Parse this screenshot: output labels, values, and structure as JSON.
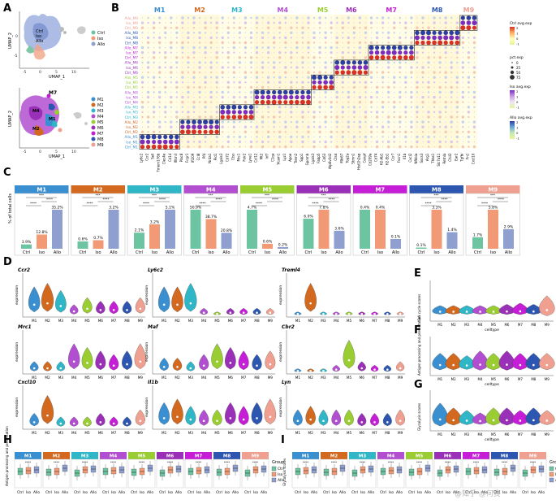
{
  "panels": {
    "A": "A",
    "B": "B",
    "C": "C",
    "D": "D",
    "E": "E",
    "F": "F",
    "G": "G",
    "H": "H",
    "I": "I"
  },
  "clusters": [
    "M1",
    "M2",
    "M3",
    "M4",
    "M5",
    "M6",
    "M7",
    "M8",
    "M9"
  ],
  "groups": [
    "Ctrl",
    "Iso",
    "Allo"
  ],
  "colors": {
    "M1": "#3a8fd1",
    "M2": "#d2691e",
    "M3": "#2fb7c7",
    "M4": "#b24fd0",
    "M5": "#9acd32",
    "M6": "#9b30b8",
    "M7": "#c51ed6",
    "M8": "#2d56b0",
    "M9": "#f0a090",
    "Ctrl": "#6cc4a0",
    "Iso": "#f29a76",
    "Allo": "#8e9fd0"
  },
  "panelA": {
    "xlabel": "UMAP_1",
    "ylabel": "UMAP_2",
    "top_labels": [
      "Ctrl",
      "Iso",
      "Allo"
    ],
    "bottom_cluster_label": "M7",
    "xticks": [
      "-5",
      "0",
      "5",
      "10"
    ],
    "yticks": [
      "0",
      "-5",
      "-10"
    ]
  },
  "panelB": {
    "rows": [
      "Allo_M9",
      "Iso_M9",
      "Ctrl_M9",
      "Allo_M8",
      "Iso_M8",
      "Ctrl_M8",
      "Allo_M7",
      "Iso_M7",
      "Ctrl_M7",
      "Allo_M6",
      "Iso_M6",
      "Ctrl_M6",
      "Allo_M5",
      "Iso_M5",
      "Ctrl_M5",
      "Allo_M4",
      "Iso_M4",
      "Ctrl_M4",
      "Allo_M3",
      "Iso_M3",
      "Ctrl_M3",
      "Allo_M2",
      "Iso_M2",
      "Ctrl_M2",
      "Allo_M1",
      "Iso_M1",
      "Ctrl_M1"
    ],
    "genes": [
      "Ly6c2",
      "Ccr2",
      "Sell",
      "Tmem176b",
      "Clec4e",
      "Cd14",
      "Ifitm3",
      "Plac8",
      "Fcgr1",
      "Ifi209",
      "Ccl8",
      "Pf4",
      "Nr4a1",
      "Pid1",
      "Lgals3",
      "Cd72",
      "Ctss",
      "Mrc1",
      "Folr2",
      "Lyve1",
      "Ccl12",
      "Mt2",
      "Irf7",
      "C1qa",
      "Vcam1",
      "Lyz1",
      "Apoe",
      "Trem2",
      "Spp1",
      "Gpnmb",
      "Lgals3",
      "Fabp5",
      "Cd63",
      "Atp6v0d2",
      "Ctsd",
      "Mki67",
      "Top2a",
      "Stmn1",
      "Hist1h2ap",
      "Cenpf",
      "Cd209a",
      "Cd74",
      "H2-Ab1",
      "H2-Eb1",
      "Ccr7",
      "Fscn1",
      "Il1b",
      "Cxcl2",
      "Nfkbia",
      "Socs3",
      "Arg1",
      "Thbs1",
      "Slc7a11",
      "Retnla",
      "Chil3",
      "Ear2",
      "Tgfbi",
      "Fn1",
      "Cxcl10"
    ],
    "legend_titles": [
      "Ctrl avg.exp",
      "pct.exp",
      "Iso avg.exp",
      "Allo avg.exp"
    ],
    "pct_labels": [
      "0",
      "25",
      "50",
      "75"
    ],
    "scale_labels": [
      "2",
      "1",
      "0",
      "-1"
    ]
  },
  "panelC": {
    "ylabel": "% of total cells",
    "chart_data": [
      {
        "type": "bar",
        "title": "M1",
        "categories": [
          "Ctrl",
          "Iso",
          "Allo"
        ],
        "values": [
          3.9,
          12.8,
          35.2
        ],
        "labels": [
          "3.9%",
          "12.8%",
          "35.2%"
        ]
      },
      {
        "type": "bar",
        "title": "M2",
        "categories": [
          "Ctrl",
          "Iso",
          "Allo"
        ],
        "values": [
          0.6,
          0.7,
          3.2
        ],
        "labels": [
          "0.6%",
          "0.7%",
          "3.2%"
        ]
      },
      {
        "type": "bar",
        "title": "M3",
        "categories": [
          "Ctrl",
          "Iso",
          "Allo"
        ],
        "values": [
          2.1,
          3.2,
          5.1
        ],
        "labels": [
          "2.1%",
          "3.2%",
          "5.1%"
        ]
      },
      {
        "type": "bar",
        "title": "M4",
        "categories": [
          "Ctrl",
          "Iso",
          "Allo"
        ],
        "values": [
          50.9,
          38.7,
          20.8
        ],
        "labels": [
          "50.9%",
          "38.7%",
          "20.8%"
        ]
      },
      {
        "type": "bar",
        "title": "M5",
        "categories": [
          "Ctrl",
          "Iso",
          "Allo"
        ],
        "values": [
          4.7,
          0.6,
          0.2
        ],
        "labels": [
          "4.7%",
          "0.6%",
          "0.2%"
        ]
      },
      {
        "type": "bar",
        "title": "M6",
        "categories": [
          "Ctrl",
          "Iso",
          "Allo"
        ],
        "values": [
          6.0,
          7.8,
          3.6
        ],
        "labels": [
          "6.0%",
          "7.8%",
          "3.6%"
        ]
      },
      {
        "type": "bar",
        "title": "M7",
        "categories": [
          "Ctrl",
          "Iso",
          "Allo"
        ],
        "values": [
          0.4,
          0.4,
          0.1
        ],
        "labels": [
          "0.4%",
          "0.4%",
          "0.1%"
        ]
      },
      {
        "type": "bar",
        "title": "M8",
        "categories": [
          "Ctrl",
          "Iso",
          "Allo"
        ],
        "values": [
          0.1,
          3.3,
          1.4
        ],
        "labels": [
          "0.1%",
          "3.3%",
          "1.4%"
        ]
      },
      {
        "type": "bar",
        "title": "M9",
        "categories": [
          "Ctrl",
          "Iso",
          "Allo"
        ],
        "values": [
          1.7,
          5.8,
          2.9
        ],
        "labels": [
          "1.7%",
          "5.8%",
          "2.9%"
        ]
      }
    ],
    "sig": [
      "****",
      "***",
      "**",
      "*",
      "ns"
    ]
  },
  "panelD": {
    "genes": [
      "Ccr2",
      "Ly6c2",
      "Treml4",
      "Mrc1",
      "Maf",
      "Cbr2",
      "Cxcl10",
      "Il1b",
      "Lyn"
    ],
    "ylabel": "expression"
  },
  "panelE": {
    "ylabel": "Cell cycle scores",
    "xlabel": "celltype"
  },
  "panelF": {
    "ylabel": "Antigen processing and presentation",
    "xlabel": "celltype"
  },
  "panelG": {
    "ylabel": "Glycolysis scores",
    "xlabel": "celltype"
  },
  "panelH": {
    "ylabel": "Antigen processing and presentation",
    "legend_title": "Group"
  },
  "panelI": {
    "ylabel": "Glycolysis scores",
    "legend_title": "Group"
  },
  "watermark": "@知乎 @何赛"
}
